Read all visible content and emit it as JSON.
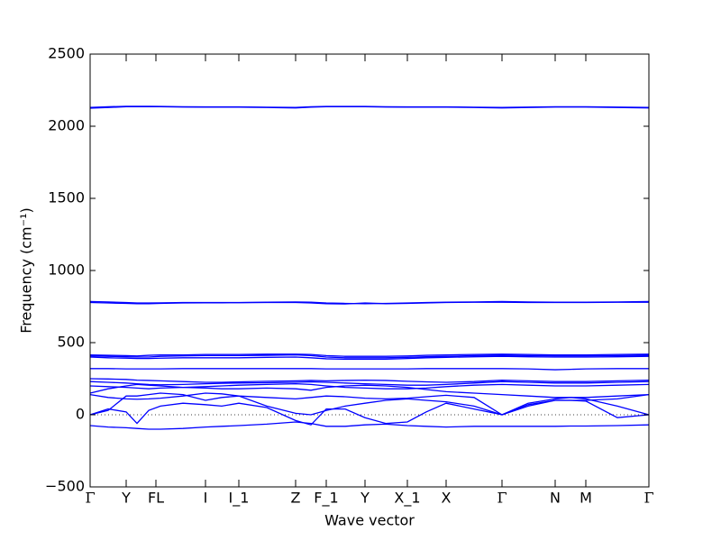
{
  "chart_data": {
    "type": "line",
    "x_label": "Wave vector",
    "y_label": "Frequency (cm⁻¹)",
    "xlim": [
      0,
      6.2
    ],
    "ylim": [
      -500,
      2500
    ],
    "yticks": [
      {
        "value": -500,
        "label": "−500"
      },
      0,
      500,
      1000,
      1500,
      2000,
      2500
    ],
    "xticks": [
      {
        "value": 0,
        "label": "Γ"
      },
      {
        "value": 0.4,
        "label": "Y"
      },
      {
        "value": 0.73,
        "label": "FL"
      },
      {
        "value": 1.28,
        "label": "I"
      },
      {
        "value": 1.65,
        "label": "I_1"
      },
      {
        "value": 2.28,
        "label": "Z"
      },
      {
        "value": 2.62,
        "label": "F_1"
      },
      {
        "value": 3.05,
        "label": "Y"
      },
      {
        "value": 3.52,
        "label": "X_1"
      },
      {
        "value": 3.95,
        "label": "X"
      },
      {
        "value": 4.57,
        "label": "Γ"
      },
      {
        "value": 5.16,
        "label": "N"
      },
      {
        "value": 5.5,
        "label": "M"
      },
      {
        "value": 6.2,
        "label": "Γ"
      }
    ],
    "zero_line": 0,
    "x": [
      0,
      0.2,
      0.4,
      0.52,
      0.65,
      0.78,
      1.03,
      1.28,
      1.46,
      1.65,
      1.96,
      2.28,
      2.45,
      2.62,
      2.83,
      3.05,
      3.28,
      3.52,
      3.73,
      3.95,
      4.26,
      4.57,
      4.86,
      5.16,
      5.33,
      5.5,
      5.85,
      6.2
    ],
    "series": [
      {
        "color": "#0000ff",
        "values": [
          2125,
          2130,
          2135,
          2135,
          2135,
          2135,
          2133,
          2132,
          2132,
          2132,
          2130,
          2127,
          2132,
          2135,
          2135,
          2135,
          2133,
          2132,
          2132,
          2132,
          2130,
          2127,
          2130,
          2133,
          2133,
          2133,
          2130,
          2127
        ]
      },
      {
        "color": "#0000ff",
        "values": [
          2130,
          2135,
          2138,
          2138,
          2138,
          2137,
          2135,
          2134,
          2134,
          2134,
          2132,
          2130,
          2135,
          2137,
          2137,
          2137,
          2135,
          2134,
          2134,
          2134,
          2132,
          2130,
          2133,
          2135,
          2135,
          2135,
          2133,
          2130
        ]
      },
      {
        "color": "#0000ff",
        "values": [
          785,
          782,
          778,
          775,
          775,
          776,
          778,
          778,
          778,
          778,
          780,
          782,
          780,
          775,
          772,
          770,
          772,
          775,
          778,
          780,
          782,
          785,
          782,
          780,
          780,
          780,
          782,
          785
        ]
      },
      {
        "color": "#0000ff",
        "values": [
          778,
          775,
          772,
          770,
          770,
          772,
          775,
          776,
          776,
          777,
          778,
          778,
          775,
          770,
          768,
          775,
          770,
          772,
          775,
          778,
          780,
          780,
          778,
          778,
          778,
          778,
          780,
          780
        ]
      },
      {
        "color": "#0000ff",
        "values": [
          415,
          412,
          410,
          408,
          412,
          415,
          415,
          418,
          418,
          418,
          420,
          420,
          418,
          410,
          405,
          405,
          405,
          408,
          412,
          415,
          418,
          420,
          418,
          415,
          415,
          415,
          418,
          420
        ]
      },
      {
        "color": "#0000ff",
        "values": [
          408,
          405,
          402,
          400,
          400,
          405,
          408,
          410,
          410,
          410,
          412,
          415,
          410,
          400,
          395,
          395,
          395,
          398,
          402,
          405,
          410,
          412,
          410,
          408,
          408,
          408,
          410,
          412
        ]
      },
      {
        "color": "#0000ff",
        "values": [
          400,
          395,
          392,
          390,
          390,
          392,
          395,
          395,
          395,
          395,
          398,
          400,
          395,
          388,
          385,
          385,
          385,
          390,
          395,
          398,
          402,
          405,
          402,
          400,
          400,
          400,
          402,
          405
        ]
      },
      {
        "color": "#0000ff",
        "values": [
          320,
          320,
          318,
          318,
          318,
          318,
          320,
          320,
          320,
          320,
          320,
          320,
          320,
          318,
          318,
          318,
          318,
          318,
          320,
          320,
          320,
          320,
          318,
          312,
          315,
          318,
          320,
          320
        ]
      },
      {
        "color": "#0000ff",
        "values": [
          250,
          248,
          245,
          240,
          238,
          235,
          230,
          225,
          225,
          228,
          232,
          235,
          238,
          235,
          238,
          240,
          238,
          232,
          228,
          225,
          230,
          240,
          235,
          230,
          230,
          230,
          235,
          240
        ]
      },
      {
        "color": "#0000ff",
        "values": [
          230,
          225,
          220,
          215,
          210,
          208,
          210,
          215,
          218,
          220,
          222,
          225,
          228,
          225,
          220,
          215,
          210,
          205,
          205,
          210,
          220,
          230,
          225,
          220,
          220,
          220,
          225,
          230
        ]
      },
      {
        "color": "#0000ff",
        "values": [
          200,
          195,
          190,
          185,
          180,
          185,
          190,
          195,
          200,
          205,
          210,
          215,
          210,
          200,
          190,
          185,
          180,
          180,
          185,
          195,
          205,
          210,
          205,
          200,
          200,
          200,
          205,
          210
        ]
      },
      {
        "color": "#0000ff",
        "values": [
          150,
          180,
          200,
          210,
          205,
          200,
          190,
          185,
          180,
          180,
          185,
          180,
          170,
          190,
          200,
          205,
          200,
          190,
          175,
          160,
          150,
          140,
          130,
          120,
          120,
          120,
          130,
          140
        ]
      },
      {
        "color": "#0000ff",
        "values": [
          140,
          120,
          110,
          108,
          110,
          115,
          130,
          150,
          145,
          130,
          120,
          110,
          120,
          130,
          125,
          115,
          110,
          115,
          125,
          135,
          120,
          0,
          60,
          100,
          100,
          100,
          110,
          140
        ]
      },
      {
        "color": "#0000ff",
        "values": [
          0,
          40,
          20,
          -60,
          30,
          60,
          80,
          70,
          60,
          80,
          50,
          -40,
          -70,
          40,
          40,
          -20,
          -60,
          -50,
          20,
          80,
          40,
          0,
          80,
          110,
          120,
          110,
          60,
          0
        ]
      },
      {
        "color": "#0000ff",
        "values": [
          0,
          30,
          130,
          130,
          140,
          150,
          140,
          100,
          120,
          130,
          60,
          10,
          0,
          30,
          60,
          80,
          100,
          110,
          100,
          90,
          60,
          0,
          70,
          100,
          100,
          95,
          -20,
          0
        ]
      },
      {
        "color": "#0000ff",
        "values": [
          -75,
          -85,
          -90,
          -95,
          -100,
          -100,
          -95,
          -85,
          -80,
          -75,
          -65,
          -50,
          -60,
          -80,
          -80,
          -70,
          -65,
          -75,
          -80,
          -85,
          -80,
          -80,
          -80,
          -80,
          -78,
          -78,
          -75,
          -70
        ]
      }
    ]
  }
}
